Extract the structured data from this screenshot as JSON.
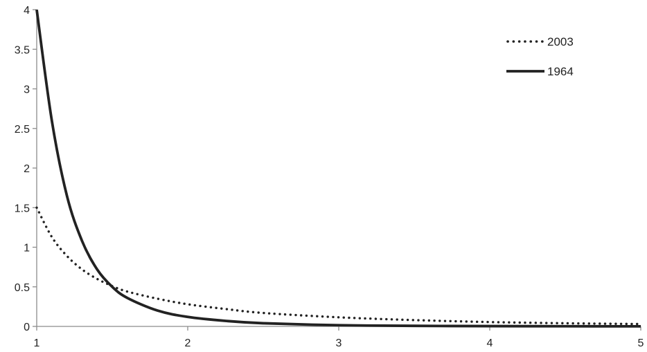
{
  "chart_data": {
    "type": "line",
    "xlim": [
      1,
      5
    ],
    "ylim": [
      0,
      4
    ],
    "x_ticks": [
      {
        "value": 1,
        "label": "1"
      },
      {
        "value": 2,
        "label": "2"
      },
      {
        "value": 3,
        "label": "3"
      },
      {
        "value": 4,
        "label": "4"
      },
      {
        "value": 5,
        "label": "5"
      }
    ],
    "y_ticks": [
      {
        "value": 0,
        "label": "0"
      },
      {
        "value": 0.5,
        "label": "0.5"
      },
      {
        "value": 1,
        "label": "1"
      },
      {
        "value": 1.5,
        "label": "1.5"
      },
      {
        "value": 2,
        "label": "2"
      },
      {
        "value": 2.5,
        "label": "2.5"
      },
      {
        "value": 3,
        "label": "3"
      },
      {
        "value": 3.5,
        "label": "3.5"
      },
      {
        "value": 4,
        "label": "4"
      }
    ],
    "grid": false,
    "legend_position": "top-right",
    "x": [
      1.0,
      1.1,
      1.2,
      1.3,
      1.4,
      1.5,
      1.6,
      1.8,
      2.0,
      2.25,
      2.5,
      3.0,
      3.5,
      4.0,
      4.5,
      5.0
    ],
    "series": [
      {
        "name": "2003",
        "style": "dotted",
        "color": "#222222",
        "values": [
          1.5,
          1.13,
          0.89,
          0.72,
          0.6,
          0.51,
          0.44,
          0.35,
          0.28,
          0.22,
          0.17,
          0.115,
          0.08,
          0.055,
          0.04,
          0.03
        ]
      },
      {
        "name": "1964",
        "style": "solid",
        "color": "#222222",
        "values": [
          4.0,
          2.6,
          1.65,
          1.08,
          0.72,
          0.5,
          0.36,
          0.2,
          0.12,
          0.07,
          0.04,
          0.015,
          0.007,
          0.004,
          0.002,
          0.001
        ]
      }
    ]
  }
}
